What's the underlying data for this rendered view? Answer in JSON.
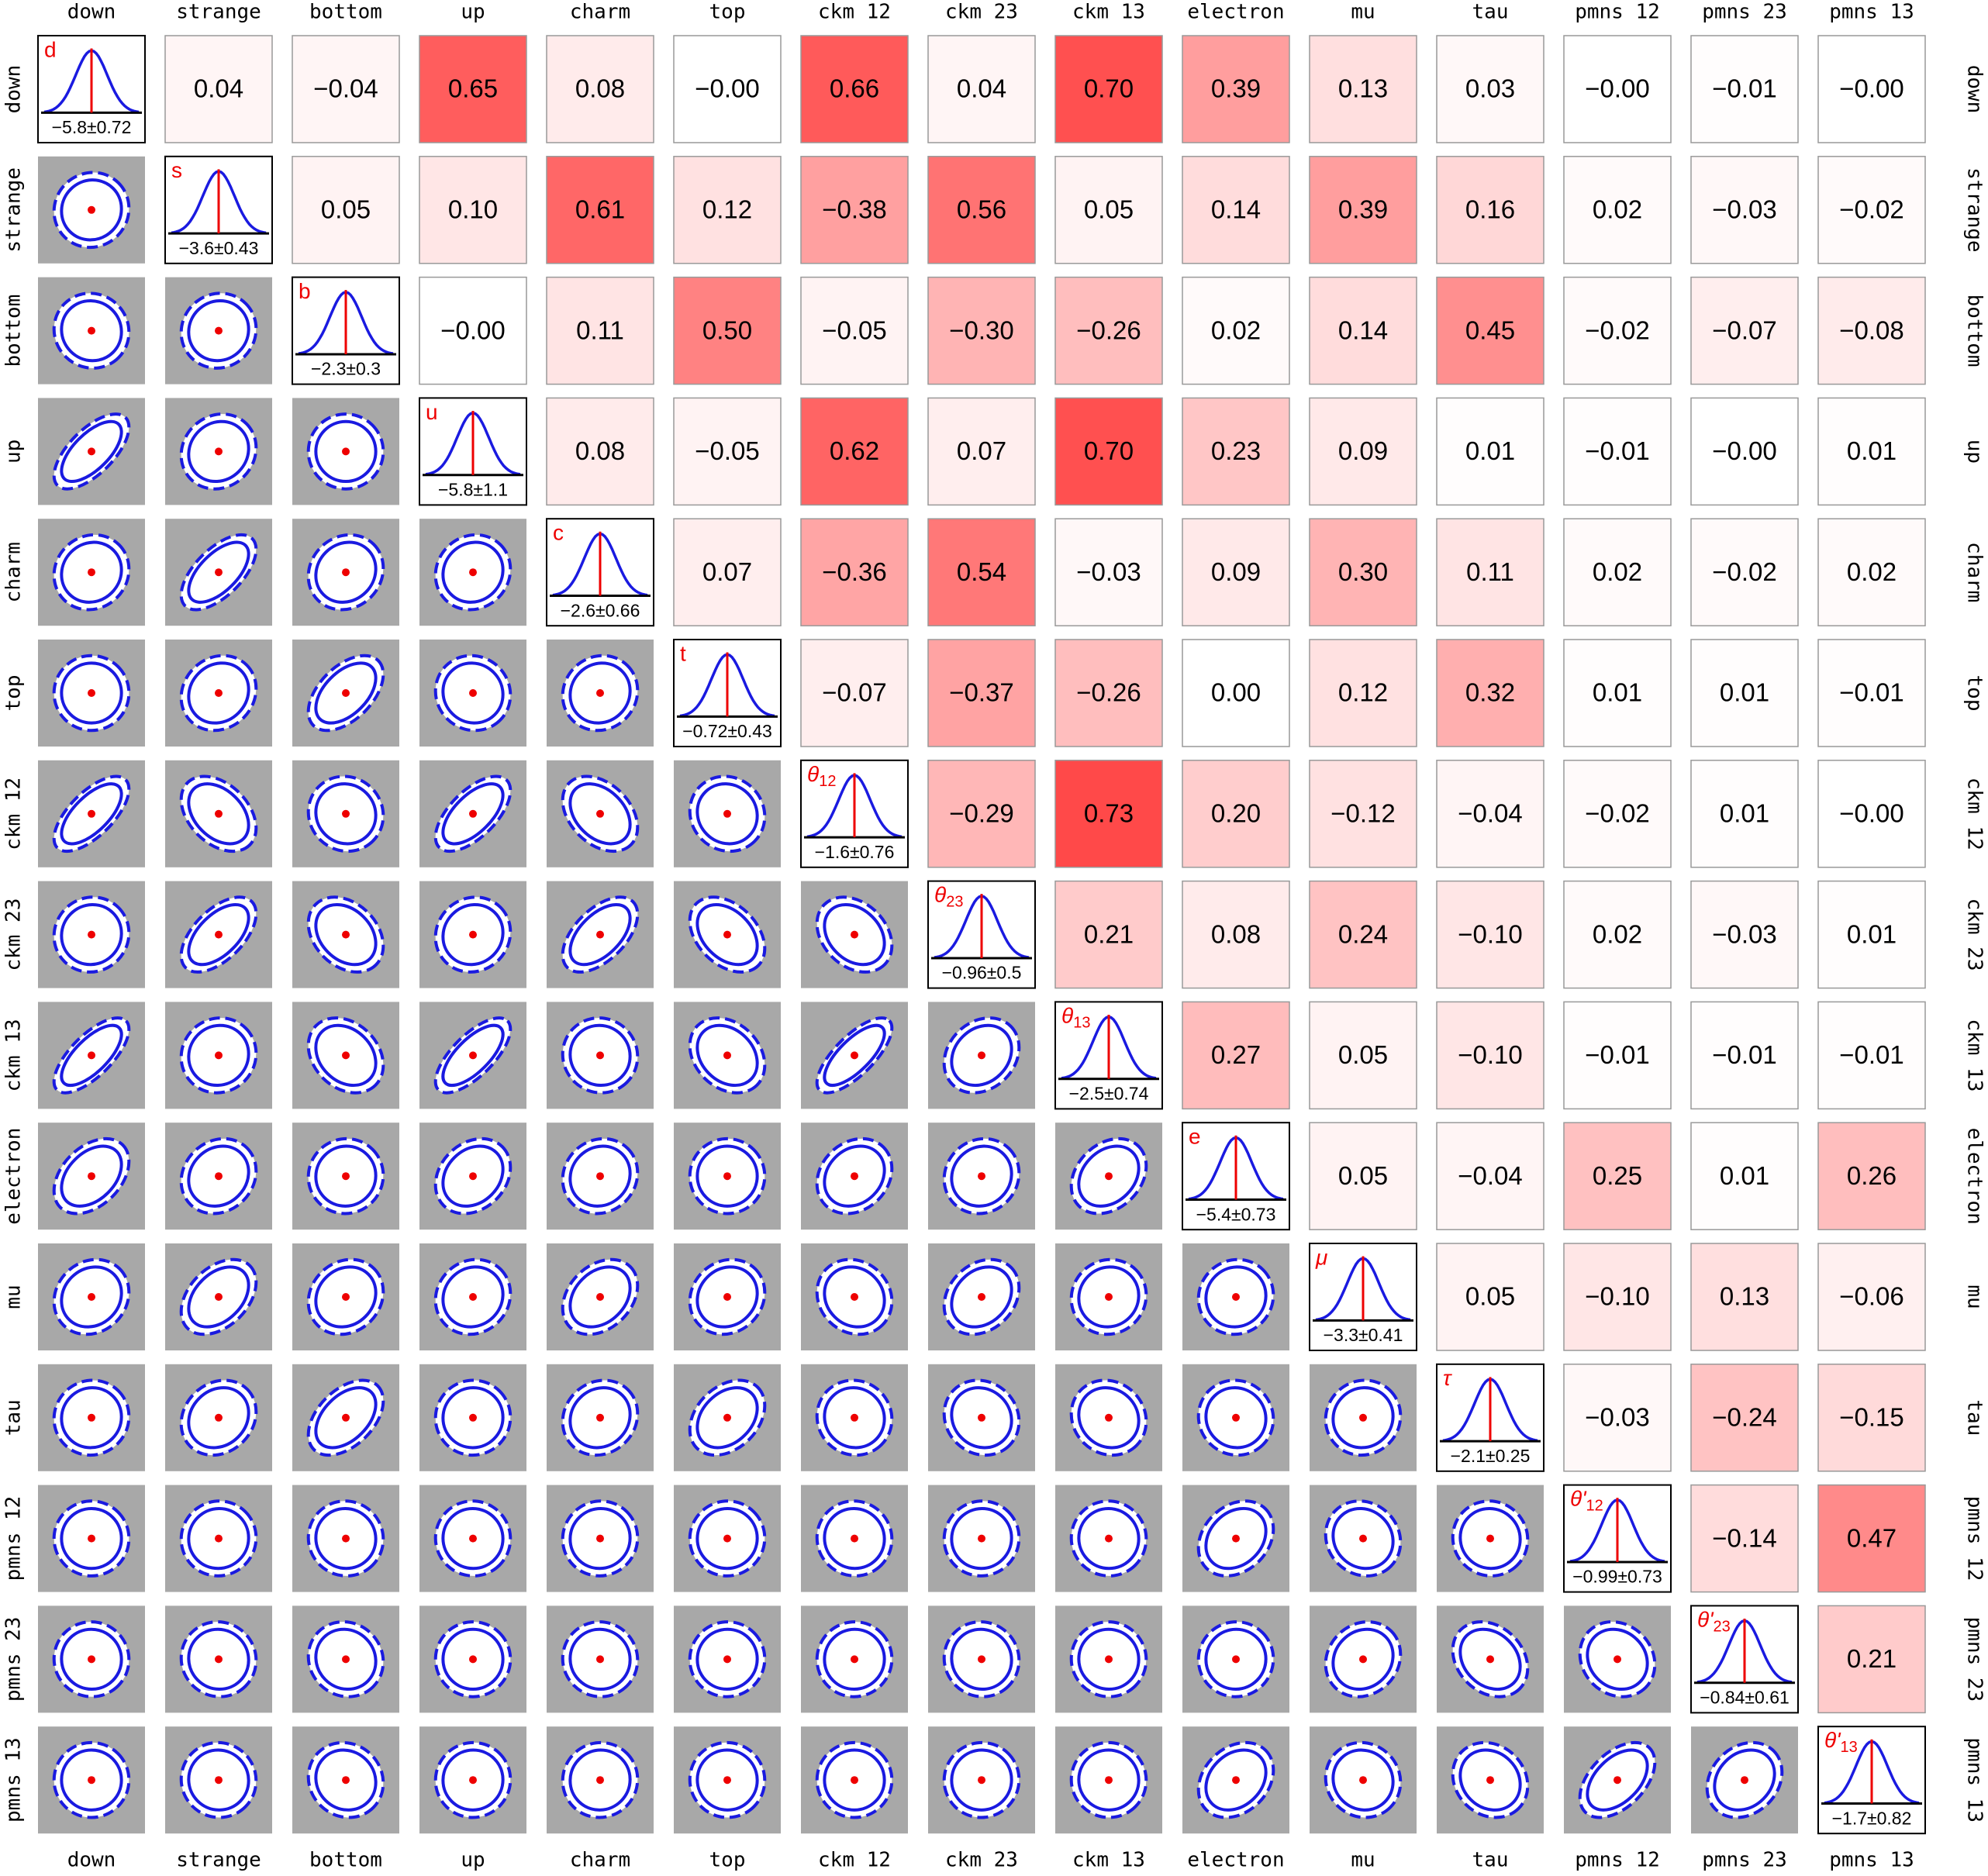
{
  "chart_data": {
    "type": "corner",
    "parameters": [
      "down",
      "strange",
      "bottom",
      "up",
      "charm",
      "top",
      "ckm 12",
      "ckm 23",
      "ckm 13",
      "electron",
      "mu",
      "tau",
      "pmns 12",
      "pmns 23",
      "pmns 13"
    ],
    "symbols": [
      "d",
      "s",
      "b",
      "u",
      "c",
      "t",
      {
        "text": "θ",
        "sub": "12"
      },
      {
        "text": "θ",
        "sub": "23"
      },
      {
        "text": "θ",
        "sub": "13"
      },
      "e",
      "μ",
      "τ",
      {
        "text": "θ'",
        "sub": "12"
      },
      {
        "text": "θ'",
        "sub": "23"
      },
      {
        "text": "θ'",
        "sub": "13"
      }
    ],
    "estimates": [
      {
        "value": -5.8,
        "error": 0.72,
        "label": "−5.8±0.72"
      },
      {
        "value": -3.6,
        "error": 0.43,
        "label": "−3.6±0.43"
      },
      {
        "value": -2.3,
        "error": 0.3,
        "label": "−2.3±0.3"
      },
      {
        "value": -5.8,
        "error": 1.1,
        "label": "−5.8±1.1"
      },
      {
        "value": -2.6,
        "error": 0.66,
        "label": "−2.6±0.66"
      },
      {
        "value": -0.72,
        "error": 0.43,
        "label": "−0.72±0.43"
      },
      {
        "value": -1.6,
        "error": 0.76,
        "label": "−1.6±0.76"
      },
      {
        "value": -0.96,
        "error": 0.5,
        "label": "−0.96±0.5"
      },
      {
        "value": -2.5,
        "error": 0.74,
        "label": "−2.5±0.74"
      },
      {
        "value": -5.4,
        "error": 0.73,
        "label": "−5.4±0.73"
      },
      {
        "value": -3.3,
        "error": 0.41,
        "label": "−3.3±0.41"
      },
      {
        "value": -2.1,
        "error": 0.25,
        "label": "−2.1±0.25"
      },
      {
        "value": -0.99,
        "error": 0.73,
        "label": "−0.99±0.73"
      },
      {
        "value": -0.84,
        "error": 0.61,
        "label": "−0.84±0.61"
      },
      {
        "value": -1.7,
        "error": 0.82,
        "label": "−1.7±0.82"
      }
    ],
    "correlations": [
      [
        0.04,
        -0.04,
        0.65,
        0.08,
        0,
        0.66,
        0.04,
        0.7,
        0.39,
        0.13,
        0.03,
        0,
        -0.01,
        0
      ],
      [
        0.05,
        0.1,
        0.61,
        0.12,
        -0.38,
        0.56,
        0.05,
        0.14,
        0.39,
        0.16,
        0.02,
        -0.03,
        -0.02
      ],
      [
        0,
        0.11,
        0.5,
        -0.05,
        -0.3,
        -0.26,
        0.02,
        0.14,
        0.45,
        -0.02,
        -0.07,
        -0.08
      ],
      [
        0.08,
        -0.05,
        0.62,
        0.07,
        0.7,
        0.23,
        0.09,
        0.01,
        -0.01,
        0,
        0.01
      ],
      [
        0.07,
        -0.36,
        0.54,
        -0.03,
        0.09,
        0.3,
        0.11,
        0.02,
        -0.02,
        0.02
      ],
      [
        -0.07,
        -0.37,
        -0.26,
        0.0,
        0.12,
        0.32,
        0.01,
        0.01,
        -0.01
      ],
      [
        -0.29,
        0.73,
        0.2,
        -0.12,
        -0.04,
        -0.02,
        0.01,
        0
      ],
      [
        0.21,
        0.08,
        0.24,
        -0.1,
        0.02,
        -0.03,
        0.01
      ],
      [
        0.27,
        0.05,
        -0.1,
        -0.01,
        -0.01,
        -0.01
      ],
      [
        0.05,
        -0.04,
        0.25,
        0.01,
        0.26
      ],
      [
        0.05,
        -0.1,
        0.13,
        -0.06
      ],
      [
        -0.03,
        -0.24,
        -0.15
      ],
      [
        -0.14,
        0.47
      ],
      [
        0.21
      ]
    ],
    "correlation_labels": [
      [
        "0.04",
        "−0.04",
        "0.65",
        "0.08",
        "−0.00",
        "0.66",
        "0.04",
        "0.70",
        "0.39",
        "0.13",
        "0.03",
        "−0.00",
        "−0.01",
        "−0.00"
      ],
      [
        "0.05",
        "0.10",
        "0.61",
        "0.12",
        "−0.38",
        "0.56",
        "0.05",
        "0.14",
        "0.39",
        "0.16",
        "0.02",
        "−0.03",
        "−0.02"
      ],
      [
        "−0.00",
        "0.11",
        "0.50",
        "−0.05",
        "−0.30",
        "−0.26",
        "0.02",
        "0.14",
        "0.45",
        "−0.02",
        "−0.07",
        "−0.08"
      ],
      [
        "0.08",
        "−0.05",
        "0.62",
        "0.07",
        "0.70",
        "0.23",
        "0.09",
        "0.01",
        "−0.01",
        "−0.00",
        "0.01"
      ],
      [
        "0.07",
        "−0.36",
        "0.54",
        "−0.03",
        "0.09",
        "0.30",
        "0.11",
        "0.02",
        "−0.02",
        "0.02"
      ],
      [
        "−0.07",
        "−0.37",
        "−0.26",
        "0.00",
        "0.12",
        "0.32",
        "0.01",
        "0.01",
        "−0.01"
      ],
      [
        "−0.29",
        "0.73",
        "0.20",
        "−0.12",
        "−0.04",
        "−0.02",
        "0.01",
        "−0.00"
      ],
      [
        "0.21",
        "0.08",
        "0.24",
        "−0.10",
        "0.02",
        "−0.03",
        "0.01"
      ],
      [
        "0.27",
        "0.05",
        "−0.10",
        "−0.01",
        "−0.01",
        "−0.01"
      ],
      [
        "0.05",
        "−0.04",
        "0.25",
        "0.01",
        "0.26"
      ],
      [
        "0.05",
        "−0.10",
        "0.13",
        "−0.06"
      ],
      [
        "−0.03",
        "−0.24",
        "−0.15"
      ],
      [
        "−0.14",
        "0.47"
      ],
      [
        "0.21"
      ]
    ]
  }
}
